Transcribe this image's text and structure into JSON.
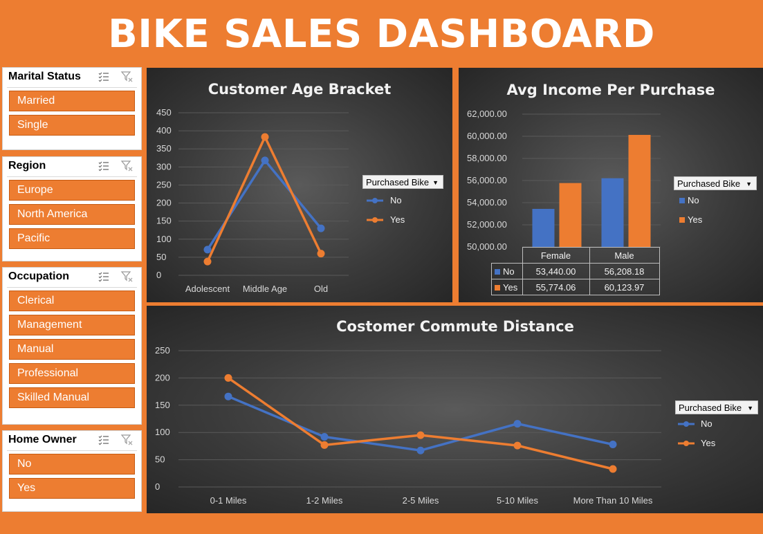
{
  "title": "BIKE SALES DASHBOARD",
  "colors": {
    "accent": "#ed7d31",
    "series_no": "#4472c4",
    "series_yes": "#ed7d31"
  },
  "slicers": [
    {
      "title": "Marital Status",
      "items": [
        "Married",
        "Single"
      ]
    },
    {
      "title": "Region",
      "items": [
        "Europe",
        "North America",
        "Pacific"
      ]
    },
    {
      "title": "Occupation",
      "items": [
        "Clerical",
        "Management",
        "Manual",
        "Professional",
        "Skilled Manual"
      ]
    },
    {
      "title": "Home Owner",
      "items": [
        "No",
        "Yes"
      ]
    }
  ],
  "legend": {
    "filter_label": "Purchased Bike",
    "no": "No",
    "yes": "Yes"
  },
  "chart_data": [
    {
      "type": "line",
      "title": "Customer Age Bracket",
      "categories": [
        "Adolescent",
        "Middle Age",
        "Old"
      ],
      "series": [
        {
          "name": "No",
          "values": [
            71,
            318,
            130
          ]
        },
        {
          "name": "Yes",
          "values": [
            38,
            383,
            60
          ]
        }
      ],
      "ylim": [
        0,
        450
      ],
      "yticks": [
        "0",
        "50",
        "100",
        "150",
        "200",
        "250",
        "300",
        "350",
        "400",
        "450"
      ],
      "grid": true,
      "legend_position": "right"
    },
    {
      "type": "bar",
      "title": "Avg Income Per Purchase",
      "categories": [
        "Female",
        "Male"
      ],
      "series": [
        {
          "name": "No",
          "values": [
            53440.0,
            56208.18
          ],
          "labels": [
            "53,440.00",
            "56,208.18"
          ]
        },
        {
          "name": "Yes",
          "values": [
            55774.06,
            60123.97
          ],
          "labels": [
            "55,774.06",
            "60,123.97"
          ]
        }
      ],
      "ylim": [
        50000,
        62000
      ],
      "yticks": [
        "50,000.00",
        "52,000.00",
        "54,000.00",
        "56,000.00",
        "58,000.00",
        "60,000.00",
        "62,000.00"
      ],
      "grid": true,
      "legend_position": "right",
      "data_table": true
    },
    {
      "type": "line",
      "title": "Costomer Commute Distance",
      "categories": [
        "0-1 Miles",
        "1-2 Miles",
        "2-5 Miles",
        "5-10 Miles",
        "More Than 10 Miles"
      ],
      "series": [
        {
          "name": "No",
          "values": [
            166,
            92,
            67,
            116,
            78
          ]
        },
        {
          "name": "Yes",
          "values": [
            200,
            77,
            95,
            76,
            33
          ]
        }
      ],
      "ylim": [
        0,
        250
      ],
      "yticks": [
        "0",
        "50",
        "100",
        "150",
        "200",
        "250"
      ],
      "grid": true,
      "legend_position": "right"
    }
  ]
}
